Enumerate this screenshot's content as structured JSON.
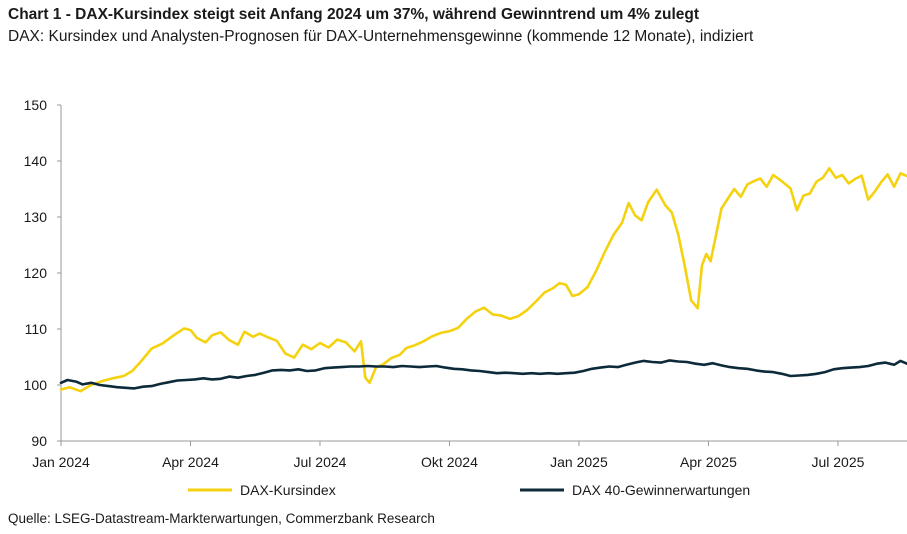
{
  "header": {
    "title": "Chart 1 - DAX-Kursindex steigt seit Anfang 2024 um 37%, während Gewinntrend um 4% zulegt",
    "subtitle": "DAX: Kursindex und Analysten-Prognosen für DAX-Unternehmensgewinne (kommende 12 Monate), indiziert"
  },
  "footer": {
    "source": "Quelle: LSEG-Datastream-Markterwartungen, Commerzbank Research"
  },
  "chart_data": {
    "type": "line",
    "title": "Chart 1 - DAX-Kursindex steigt seit Anfang 2024 um 37%, während Gewinntrend um 4% zulegt",
    "xlabel": "",
    "ylabel": "",
    "ylim": [
      90,
      150
    ],
    "yticks": [
      90,
      100,
      110,
      120,
      130,
      140,
      150
    ],
    "xlim": [
      0,
      19.6
    ],
    "xticks": [
      {
        "x": 0,
        "label": "Jan 2024"
      },
      {
        "x": 3,
        "label": "Apr 2024"
      },
      {
        "x": 6,
        "label": "Jul 2024"
      },
      {
        "x": 9,
        "label": "Okt 2024"
      },
      {
        "x": 12,
        "label": "Jan 2025"
      },
      {
        "x": 15,
        "label": "Apr 2025"
      },
      {
        "x": 18,
        "label": "Jul 2025"
      }
    ],
    "grid": false,
    "legend_position": "bottom",
    "series": [
      {
        "name": "DAX-Kursindex",
        "color": "#f5d20f",
        "x": [
          0,
          0.2,
          0.45,
          0.65,
          0.8,
          1.0,
          1.2,
          1.45,
          1.65,
          1.85,
          2.1,
          2.35,
          2.6,
          2.85,
          3.0,
          3.15,
          3.35,
          3.5,
          3.7,
          3.9,
          4.1,
          4.25,
          4.45,
          4.6,
          4.8,
          5.0,
          5.2,
          5.4,
          5.6,
          5.8,
          6.0,
          6.2,
          6.4,
          6.6,
          6.8,
          6.95,
          7.05,
          7.15,
          7.3,
          7.45,
          7.65,
          7.85,
          8.0,
          8.2,
          8.4,
          8.6,
          8.8,
          9.0,
          9.2,
          9.4,
          9.6,
          9.8,
          10.0,
          10.2,
          10.4,
          10.6,
          10.8,
          11.0,
          11.2,
          11.4,
          11.55,
          11.7,
          11.85,
          12.0,
          12.2,
          12.4,
          12.6,
          12.8,
          13.0,
          13.15,
          13.3,
          13.45,
          13.6,
          13.8,
          14.0,
          14.15,
          14.3,
          14.45,
          14.6,
          14.75,
          14.85,
          14.95,
          15.05,
          15.15,
          15.3,
          15.45,
          15.6,
          15.75,
          15.9,
          16.05,
          16.2,
          16.35,
          16.5,
          16.7,
          16.9,
          17.05,
          17.2,
          17.35,
          17.5,
          17.65,
          17.8,
          17.95,
          18.1,
          18.25,
          18.4,
          18.55,
          18.7,
          18.85,
          19.0,
          19.15,
          19.3,
          19.45,
          19.6
        ],
        "values": [
          99.2,
          99.6,
          98.9,
          99.8,
          100.3,
          100.8,
          101.2,
          101.6,
          102.5,
          104.2,
          106.5,
          107.4,
          108.8,
          110.1,
          109.8,
          108.4,
          107.6,
          108.9,
          109.4,
          108.0,
          107.2,
          109.5,
          108.6,
          109.2,
          108.5,
          107.9,
          105.6,
          104.9,
          107.2,
          106.4,
          107.5,
          106.7,
          108.1,
          107.6,
          106.0,
          107.8,
          101.3,
          100.4,
          103.2,
          103.6,
          104.8,
          105.4,
          106.6,
          107.1,
          107.8,
          108.7,
          109.3,
          109.6,
          110.2,
          111.8,
          113.1,
          113.8,
          112.6,
          112.4,
          111.8,
          112.3,
          113.4,
          114.9,
          116.5,
          117.3,
          118.2,
          117.9,
          115.9,
          116.2,
          117.5,
          120.4,
          123.8,
          126.8,
          129.0,
          132.5,
          130.3,
          129.4,
          132.6,
          134.9,
          132.1,
          130.8,
          126.9,
          121.3,
          115.1,
          113.7,
          121.4,
          123.4,
          122.1,
          125.8,
          131.5,
          133.3,
          135.0,
          133.6,
          135.8,
          136.4,
          136.9,
          135.4,
          137.5,
          136.4,
          135.1,
          131.2,
          133.8,
          134.2,
          136.3,
          137.0,
          138.7,
          137.0,
          137.5,
          136.0,
          136.8,
          137.4,
          133.1,
          134.5,
          136.2,
          137.6,
          135.4,
          137.8,
          137.3
        ]
      },
      {
        "name": "DAX 40-Gewinnerwartungen",
        "color": "#0d2a3a",
        "x": [
          0,
          0.15,
          0.35,
          0.5,
          0.7,
          0.9,
          1.1,
          1.3,
          1.5,
          1.7,
          1.9,
          2.1,
          2.3,
          2.5,
          2.7,
          2.9,
          3.1,
          3.3,
          3.5,
          3.7,
          3.9,
          4.1,
          4.3,
          4.5,
          4.7,
          4.9,
          5.1,
          5.3,
          5.5,
          5.7,
          5.9,
          6.1,
          6.3,
          6.5,
          6.7,
          6.9,
          7.1,
          7.3,
          7.5,
          7.7,
          7.9,
          8.1,
          8.3,
          8.5,
          8.7,
          8.9,
          9.1,
          9.3,
          9.5,
          9.7,
          9.9,
          10.1,
          10.3,
          10.5,
          10.7,
          10.9,
          11.1,
          11.3,
          11.5,
          11.7,
          11.9,
          12.1,
          12.3,
          12.5,
          12.7,
          12.9,
          13.1,
          13.3,
          13.5,
          13.7,
          13.9,
          14.1,
          14.3,
          14.5,
          14.7,
          14.9,
          15.1,
          15.3,
          15.5,
          15.7,
          15.9,
          16.1,
          16.3,
          16.5,
          16.7,
          16.9,
          17.1,
          17.3,
          17.5,
          17.7,
          17.9,
          18.1,
          18.3,
          18.5,
          18.7,
          18.9,
          19.1,
          19.3,
          19.45,
          19.6
        ],
        "values": [
          100.4,
          100.9,
          100.6,
          100.1,
          100.4,
          100.0,
          99.8,
          99.6,
          99.5,
          99.4,
          99.7,
          99.8,
          100.2,
          100.5,
          100.8,
          100.9,
          101.0,
          101.2,
          101.0,
          101.1,
          101.5,
          101.3,
          101.6,
          101.8,
          102.2,
          102.6,
          102.7,
          102.6,
          102.8,
          102.5,
          102.6,
          103.0,
          103.1,
          103.2,
          103.3,
          103.3,
          103.4,
          103.3,
          103.3,
          103.2,
          103.4,
          103.3,
          103.2,
          103.3,
          103.4,
          103.1,
          102.9,
          102.8,
          102.6,
          102.5,
          102.3,
          102.1,
          102.2,
          102.1,
          102.0,
          102.1,
          102.0,
          102.1,
          102.0,
          102.1,
          102.2,
          102.5,
          102.9,
          103.1,
          103.3,
          103.2,
          103.6,
          104.0,
          104.3,
          104.1,
          104.0,
          104.4,
          104.2,
          104.1,
          103.8,
          103.6,
          103.9,
          103.5,
          103.2,
          103.0,
          102.9,
          102.6,
          102.4,
          102.3,
          102.0,
          101.6,
          101.7,
          101.8,
          102.0,
          102.3,
          102.8,
          103.0,
          103.1,
          103.2,
          103.4,
          103.8,
          104.0,
          103.6,
          104.3,
          103.8
        ]
      }
    ]
  }
}
